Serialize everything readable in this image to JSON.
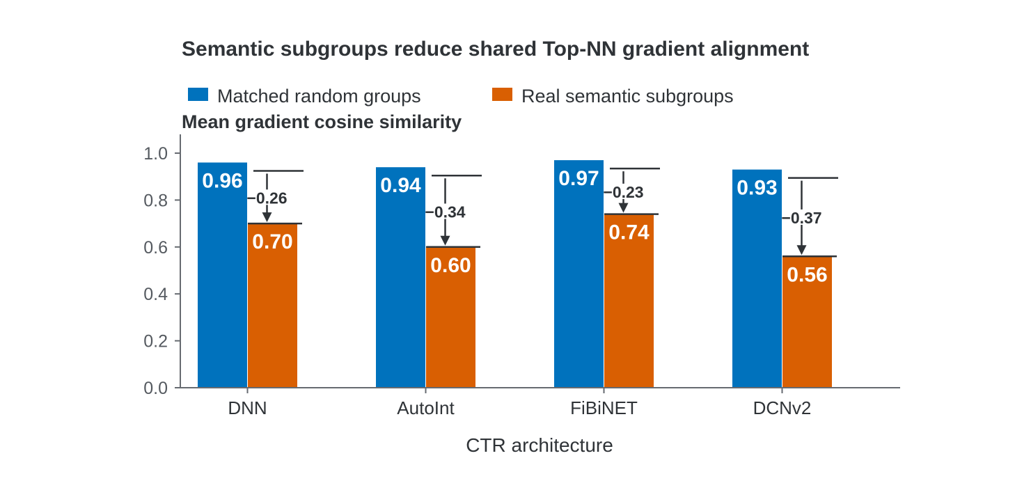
{
  "chart_data": {
    "type": "bar",
    "title": "Semantic subgroups reduce shared Top-NN gradient alignment",
    "ylabel": "Mean gradient cosine similarity",
    "xlabel": "CTR architecture",
    "categories": [
      "DNN",
      "AutoInt",
      "FiBiNET",
      "DCNv2"
    ],
    "series": [
      {
        "name": "Matched random groups",
        "values": [
          0.96,
          0.94,
          0.97,
          0.93
        ],
        "labels": [
          "0.96",
          "0.94",
          "0.97",
          "0.93"
        ],
        "color": "#0072bd"
      },
      {
        "name": "Real semantic subgroups",
        "values": [
          0.7,
          0.6,
          0.74,
          0.56
        ],
        "labels": [
          "0.70",
          "0.60",
          "0.74",
          "0.56"
        ],
        "color": "#d95f02"
      }
    ],
    "deltas": [
      "−0.26",
      "−0.34",
      "−0.23",
      "−0.37"
    ],
    "ylim": [
      0,
      1.08
    ],
    "yticks": [
      "0.0",
      "0.2",
      "0.4",
      "0.6",
      "0.8",
      "1.0"
    ],
    "ytick_values": [
      0,
      0.2,
      0.4,
      0.6,
      0.8,
      1.0
    ],
    "grid": false,
    "legend_position": "top-left"
  }
}
